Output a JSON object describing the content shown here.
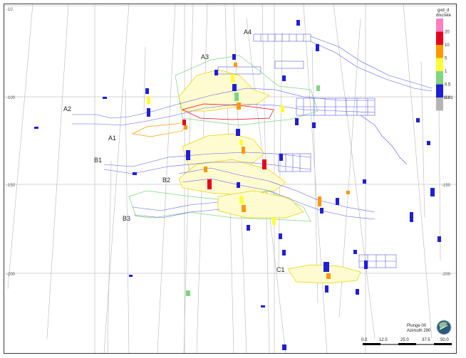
{
  "viewer": {
    "axis_ticks": {
      "left": [
        "-10",
        "-100",
        "-150",
        "-200"
      ],
      "right": [
        "-100",
        "-150",
        "-200"
      ]
    },
    "zone_labels": [
      "A4",
      "A3",
      "A2",
      "A1",
      "B1",
      "B2",
      "B3",
      "C1"
    ],
    "legend": {
      "title_line1": "gxd_d",
      "title_line2": "discrete",
      "bins": [
        {
          "label": "20",
          "color": "#ff7fbf"
        },
        {
          "label": "10",
          "color": "#e8001c"
        },
        {
          "label": "5",
          "color": "#ff9900"
        },
        {
          "label": "1",
          "color": "#ffff33"
        },
        {
          "label": "0.5",
          "color": "#7fd67f"
        },
        {
          "label": "0.01",
          "color": "#1f1fd6"
        },
        {
          "label": "",
          "color": "#b4b4b4"
        }
      ]
    },
    "orientation": {
      "plunge": "Plunge 00",
      "azimuth": "Azimuth 290"
    },
    "compass_icon": "globe-orientation-icon",
    "scale_bar": {
      "ticks": [
        "0.0",
        "12.5",
        "25.0",
        "37.5",
        "50.0"
      ]
    }
  }
}
